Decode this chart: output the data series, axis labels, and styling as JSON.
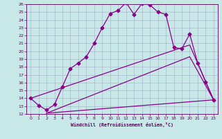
{
  "title": "",
  "xlabel": "Windchill (Refroidissement éolien,°C)",
  "bg_color": "#c8e8e8",
  "grid_color": "#aaaacc",
  "line_color": "#880088",
  "xlim": [
    -0.5,
    23.5
  ],
  "ylim": [
    12,
    26
  ],
  "xticks": [
    0,
    1,
    2,
    3,
    4,
    5,
    6,
    7,
    8,
    9,
    10,
    11,
    12,
    13,
    14,
    15,
    16,
    17,
    18,
    19,
    20,
    21,
    22,
    23
  ],
  "yticks": [
    12,
    13,
    14,
    15,
    16,
    17,
    18,
    19,
    20,
    21,
    22,
    23,
    24,
    25,
    26
  ],
  "line1_x": [
    0,
    1,
    2,
    3,
    4,
    5,
    6,
    7,
    8,
    9,
    10,
    11,
    12,
    13,
    14,
    15,
    16,
    17,
    18,
    19,
    20,
    21,
    22,
    23
  ],
  "line1_y": [
    14.0,
    13.1,
    12.5,
    13.2,
    15.5,
    17.8,
    18.5,
    19.3,
    21.0,
    23.0,
    24.8,
    25.2,
    26.2,
    24.7,
    26.1,
    25.9,
    25.0,
    24.7,
    20.5,
    20.3,
    22.2,
    18.5,
    16.1,
    13.8
  ],
  "line2_x": [
    0,
    20,
    23
  ],
  "line2_y": [
    14.0,
    20.8,
    13.8
  ],
  "line3_x": [
    2,
    20,
    23
  ],
  "line3_y": [
    12.1,
    19.3,
    13.8
  ],
  "line4_x": [
    2,
    23
  ],
  "line4_y": [
    12.1,
    13.8
  ],
  "marker": "D",
  "markersize": 2.5
}
